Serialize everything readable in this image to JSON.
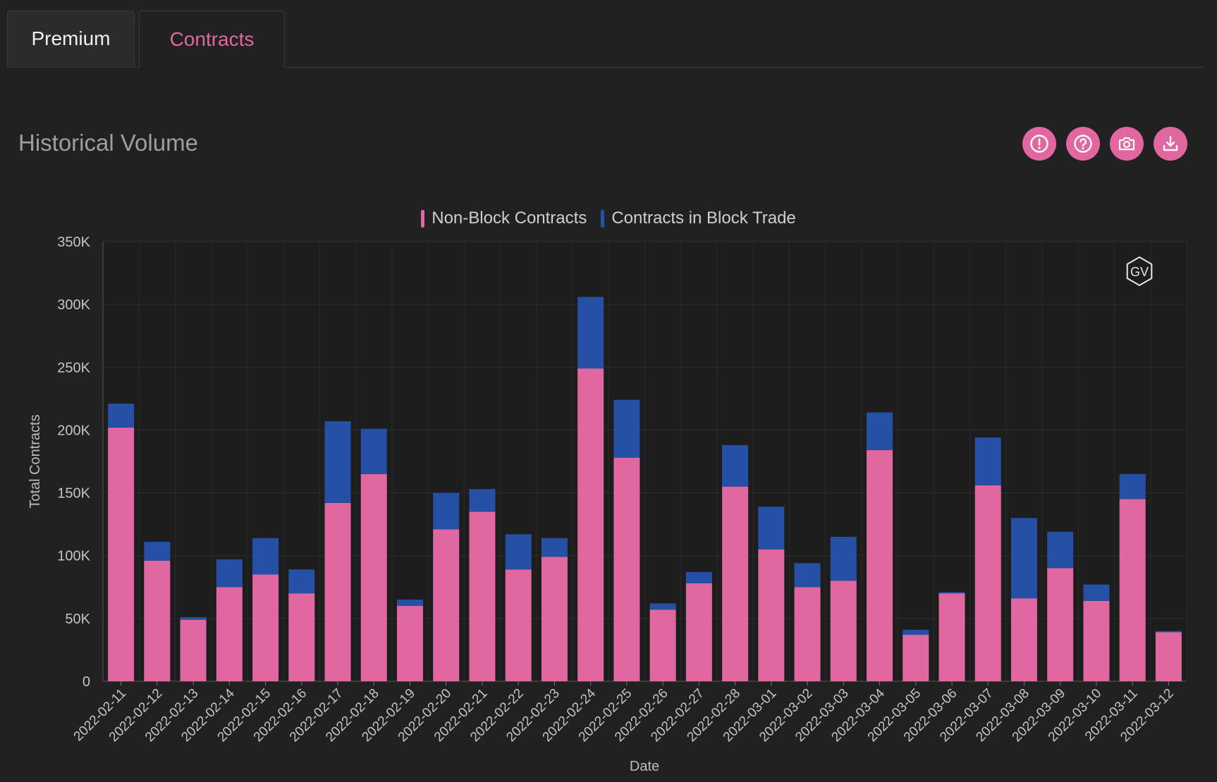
{
  "tabs": [
    {
      "label": "Premium",
      "active": false
    },
    {
      "label": "Contracts",
      "active": true
    }
  ],
  "panel": {
    "title": "Historical Volume"
  },
  "actions": [
    {
      "icon": "alert-circle-icon"
    },
    {
      "icon": "help-circle-icon"
    },
    {
      "icon": "camera-icon"
    },
    {
      "icon": "download-icon"
    }
  ],
  "watermark": "GV",
  "colors": {
    "non_block": "#e0679f",
    "block": "#2550a5",
    "accent": "#e0679f"
  },
  "chart_data": {
    "type": "bar",
    "stacked": true,
    "xlabel": "Date",
    "ylabel": "Total Contracts",
    "ylim": [
      0,
      350000
    ],
    "yticks": [
      0,
      50000,
      100000,
      150000,
      200000,
      250000,
      300000,
      350000
    ],
    "ytick_labels": [
      "0",
      "50K",
      "100K",
      "150K",
      "200K",
      "250K",
      "300K",
      "350K"
    ],
    "grid": true,
    "legend_position": "top-center",
    "categories": [
      "2022-02-11",
      "2022-02-12",
      "2022-02-13",
      "2022-02-14",
      "2022-02-15",
      "2022-02-16",
      "2022-02-17",
      "2022-02-18",
      "2022-02-19",
      "2022-02-20",
      "2022-02-21",
      "2022-02-22",
      "2022-02-23",
      "2022-02-24",
      "2022-02-25",
      "2022-02-26",
      "2022-02-27",
      "2022-02-28",
      "2022-03-01",
      "2022-03-02",
      "2022-03-03",
      "2022-03-04",
      "2022-03-05",
      "2022-03-06",
      "2022-03-07",
      "2022-03-08",
      "2022-03-09",
      "2022-03-10",
      "2022-03-11",
      "2022-03-12"
    ],
    "series": [
      {
        "name": "Non-Block Contracts",
        "values": [
          202000,
          96000,
          49000,
          75000,
          85000,
          70000,
          142000,
          165000,
          60000,
          121000,
          135000,
          89000,
          99000,
          249000,
          178000,
          57000,
          78000,
          155000,
          105000,
          75000,
          80000,
          184000,
          37000,
          70000,
          156000,
          66000,
          90000,
          64000,
          145000,
          39000
        ]
      },
      {
        "name": "Contracts in Block Trade",
        "values": [
          19000,
          15000,
          2000,
          22000,
          29000,
          19000,
          65000,
          36000,
          5000,
          29000,
          18000,
          28000,
          15000,
          57000,
          46000,
          5000,
          9000,
          33000,
          34000,
          19000,
          35000,
          30000,
          4000,
          1000,
          38000,
          64000,
          29000,
          13000,
          20000,
          1000
        ]
      }
    ]
  }
}
